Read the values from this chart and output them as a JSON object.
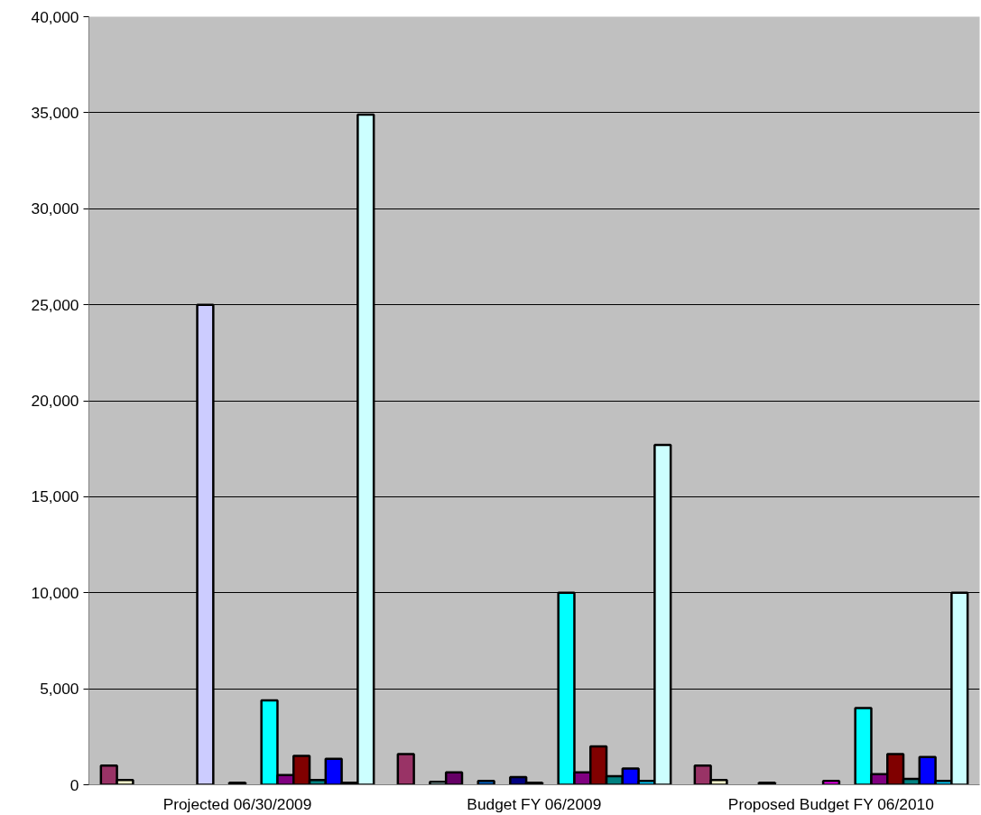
{
  "chart_data": {
    "type": "bar",
    "categories": [
      "Projected 06/30/2009",
      "Budget FY 06/2009",
      "Proposed Budget FY 06/2010"
    ],
    "series": [
      {
        "color": "#993366",
        "values": [
          1000,
          1600,
          1000
        ]
      },
      {
        "color": "#ffffcc",
        "values": [
          250,
          null,
          250
        ]
      },
      {
        "color": "#ccffff",
        "values": [
          null,
          150,
          null
        ]
      },
      {
        "color": "#660066",
        "values": [
          null,
          650,
          null
        ]
      },
      {
        "color": "#000000",
        "values": [
          null,
          null,
          100
        ]
      },
      {
        "color": "#0066cc",
        "values": [
          null,
          200,
          null
        ]
      },
      {
        "color": "#ccccff",
        "values": [
          25000,
          null,
          null
        ]
      },
      {
        "color": "#000080",
        "values": [
          null,
          400,
          null
        ]
      },
      {
        "color": "#ff00ff",
        "values": [
          100,
          100,
          200
        ]
      },
      {
        "color": "#ffff00",
        "values": [
          null,
          null,
          null
        ]
      },
      {
        "color": "#00ffff",
        "values": [
          4400,
          10000,
          4000
        ]
      },
      {
        "color": "#800080",
        "values": [
          500,
          650,
          550
        ]
      },
      {
        "color": "#800000",
        "values": [
          1500,
          2000,
          1600
        ]
      },
      {
        "color": "#008080",
        "values": [
          250,
          450,
          300
        ]
      },
      {
        "color": "#0000ff",
        "values": [
          1350,
          850,
          1450
        ]
      },
      {
        "color": "#00ccff",
        "values": [
          100,
          200,
          200
        ]
      },
      {
        "color": "#ccffff",
        "values": [
          34900,
          17700,
          10000
        ]
      }
    ],
    "ylim": [
      0,
      40000
    ],
    "yticks": [
      {
        "value": 0,
        "label": "0"
      },
      {
        "value": 5000,
        "label": "5,000"
      },
      {
        "value": 10000,
        "label": "10,000"
      },
      {
        "value": 15000,
        "label": "15,000"
      },
      {
        "value": 20000,
        "label": "20,000"
      },
      {
        "value": 25000,
        "label": "25,000"
      },
      {
        "value": 30000,
        "label": "30,000"
      },
      {
        "value": 35000,
        "label": "35,000"
      },
      {
        "value": 40000,
        "label": "40,000"
      }
    ],
    "grid": "y"
  }
}
